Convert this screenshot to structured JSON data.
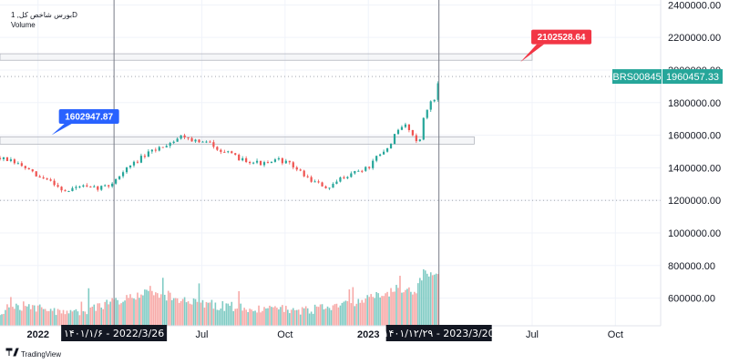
{
  "legend": {
    "title": "بورس شاخص كل, 1D",
    "volume_label": "Volume"
  },
  "branding": {
    "name": "TradingView"
  },
  "colors": {
    "up": "#26a69a",
    "down": "#ef5350",
    "up_volume": "#80cbc4",
    "down_volume": "#f7a9a7",
    "callout_high": "#f23645",
    "callout_low": "#2962ff",
    "price_label": "#26a69a"
  },
  "price_axis": {
    "ticks": [
      "2400000.00",
      "2200000.00",
      "2000000.00",
      "1800000.00",
      "1600000.00",
      "1400000.00",
      "1200000.00",
      "1000000.00",
      "800000.00",
      "600000.00"
    ]
  },
  "time_axis": {
    "ticks": [
      {
        "label": "2022",
        "bold": true,
        "date": "2022-01-01"
      },
      {
        "label": "Jul",
        "bold": false,
        "date": "2022-07-01"
      },
      {
        "label": "Oct",
        "bold": false,
        "date": "2022-10-01"
      },
      {
        "label": "2023",
        "bold": true,
        "date": "2023-01-01"
      },
      {
        "label": "Jul",
        "bold": false,
        "date": "2023-07-01"
      },
      {
        "label": "Oct",
        "bold": false,
        "date": "2023-10-01"
      }
    ]
  },
  "markers": [
    {
      "date": "2022-03-26",
      "label": "۱۴۰۱/۱/۶ - 2022/3/26"
    },
    {
      "date": "2023-03-20",
      "label": "۱۴۰۱/۱۲/۲۹ - 2023/3/20"
    }
  ],
  "zones": [
    {
      "start": "2021-11-20",
      "end": "2023-07-01",
      "low": 2060000,
      "high": 2100000
    },
    {
      "start": "2021-11-20",
      "end": "2023-04-28",
      "low": 1545000,
      "high": 1590000
    }
  ],
  "callouts": [
    {
      "label": "2102528.64",
      "value": 2102528.64,
      "date": "2023-06-20",
      "tone": "high"
    },
    {
      "label": "1602947.87",
      "value": 1602947.87,
      "date": "2022-01-10",
      "tone": "low"
    }
  ],
  "current_price": {
    "symbol": "BRS00845",
    "value": 1960457.33,
    "label": "1960457.33"
  },
  "reference_lines": [
    1960457.33,
    1200000
  ],
  "chart_data": {
    "type": "candlestick",
    "title": "بورس شاخص كل, 1D",
    "xlabel": "",
    "ylabel": "",
    "x_range": [
      "2021-11-20",
      "2023-11-20"
    ],
    "y_range": [
      430000,
      2430000
    ],
    "grid": true,
    "series": [
      {
        "name": "بورس شاخص كل",
        "x": [
          "2021-11-20",
          "2021-12-01",
          "2021-12-15",
          "2022-01-01",
          "2022-01-15",
          "2022-02-01",
          "2022-02-15",
          "2022-03-01",
          "2022-03-20",
          "2022-04-10",
          "2022-04-25",
          "2022-05-10",
          "2022-05-25",
          "2022-06-10",
          "2022-06-25",
          "2022-07-10",
          "2022-07-25",
          "2022-08-10",
          "2022-08-25",
          "2022-09-10",
          "2022-09-25",
          "2022-10-10",
          "2022-10-25",
          "2022-11-10",
          "2022-11-20",
          "2022-11-30",
          "2022-12-10",
          "2022-12-20",
          "2023-01-01",
          "2023-01-10",
          "2023-01-20",
          "2023-01-28",
          "2023-02-05",
          "2023-02-13",
          "2023-02-20",
          "2023-02-26",
          "2023-03-04",
          "2023-03-10",
          "2023-03-15",
          "2023-03-20"
        ],
        "values": [
          1460000,
          1440000,
          1410000,
          1340000,
          1320000,
          1250000,
          1290000,
          1270000,
          1290000,
          1400000,
          1460000,
          1510000,
          1550000,
          1600000,
          1560000,
          1550000,
          1500000,
          1460000,
          1440000,
          1420000,
          1450000,
          1410000,
          1340000,
          1290000,
          1270000,
          1330000,
          1360000,
          1380000,
          1400000,
          1460000,
          1500000,
          1580000,
          1640000,
          1670000,
          1580000,
          1560000,
          1720000,
          1800000,
          1820000,
          1960000
        ]
      },
      {
        "name": "Volume",
        "x": [
          "2021-11-20",
          "2021-12-15",
          "2022-01-15",
          "2022-02-15",
          "2022-03-20",
          "2022-04-25",
          "2022-05-25",
          "2022-06-25",
          "2022-07-25",
          "2022-08-25",
          "2022-09-25",
          "2022-10-25",
          "2022-11-20",
          "2022-12-10",
          "2023-01-01",
          "2023-01-20",
          "2023-02-05",
          "2023-02-20",
          "2023-03-04",
          "2023-03-15"
        ],
        "values": [
          520000,
          545000,
          520000,
          505000,
          560000,
          620000,
          600000,
          565000,
          545000,
          535000,
          530000,
          520000,
          545000,
          565000,
          590000,
          615000,
          660000,
          615000,
          760000,
          720000
        ]
      }
    ]
  }
}
